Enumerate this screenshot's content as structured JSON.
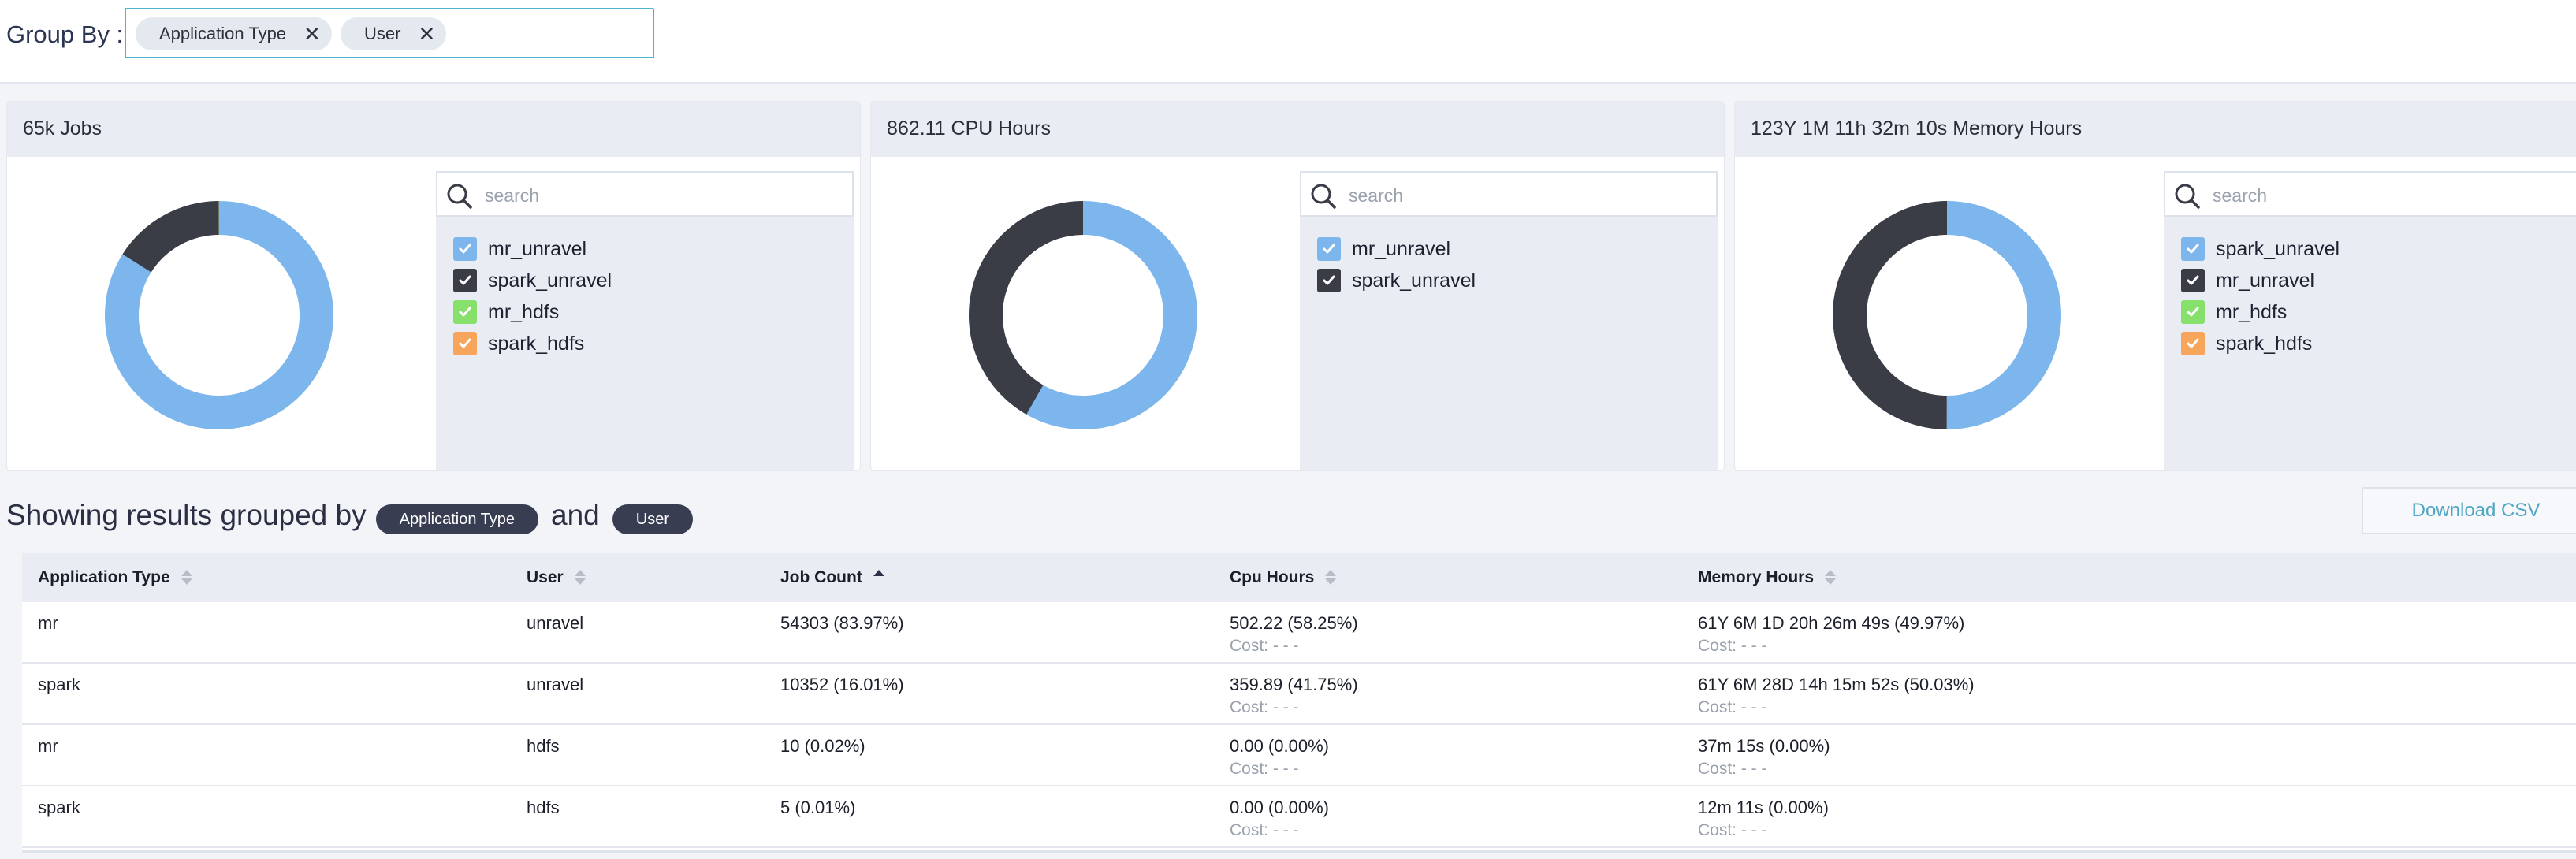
{
  "group_by": {
    "label": "Group By :",
    "chips": [
      "Application Type",
      "User"
    ],
    "remove_symbol": "✕"
  },
  "colors": {
    "accent": "#4fb3cf",
    "light_blue": "#7db6ec",
    "dark": "#3a3d46",
    "green": "#86e06b",
    "orange": "#f6a55b"
  },
  "cards": [
    {
      "title": "65k Jobs",
      "search_placeholder": "search",
      "legend": [
        {
          "label": "mr_unravel",
          "color": "#7db6ec"
        },
        {
          "label": "spark_unravel",
          "color": "#3a3d46"
        },
        {
          "label": "mr_hdfs",
          "color": "#86e06b"
        },
        {
          "label": "spark_hdfs",
          "color": "#f6a55b"
        }
      ]
    },
    {
      "title": "862.11 CPU Hours",
      "search_placeholder": "search",
      "legend": [
        {
          "label": "mr_unravel",
          "color": "#7db6ec"
        },
        {
          "label": "spark_unravel",
          "color": "#3a3d46"
        }
      ]
    },
    {
      "title": "123Y 1M 11h 32m 10s Memory Hours",
      "search_placeholder": "search",
      "legend": [
        {
          "label": "spark_unravel",
          "color": "#7db6ec"
        },
        {
          "label": "mr_unravel",
          "color": "#3a3d46"
        },
        {
          "label": "mr_hdfs",
          "color": "#86e06b"
        },
        {
          "label": "spark_hdfs",
          "color": "#f6a55b"
        }
      ]
    }
  ],
  "chart_data": [
    {
      "type": "pie",
      "title": "65k Jobs",
      "series": [
        {
          "name": "mr_unravel",
          "value": 83.97
        },
        {
          "name": "spark_unravel",
          "value": 16.01
        },
        {
          "name": "mr_hdfs",
          "value": 0.02
        },
        {
          "name": "spark_hdfs",
          "value": 0.01
        }
      ]
    },
    {
      "type": "pie",
      "title": "862.11 CPU Hours",
      "series": [
        {
          "name": "mr_unravel",
          "value": 58.25
        },
        {
          "name": "spark_unravel",
          "value": 41.75
        }
      ]
    },
    {
      "type": "pie",
      "title": "123Y 1M 11h 32m 10s Memory Hours",
      "series": [
        {
          "name": "spark_unravel",
          "value": 50.03
        },
        {
          "name": "mr_unravel",
          "value": 49.97
        },
        {
          "name": "mr_hdfs",
          "value": 0.0
        },
        {
          "name": "spark_hdfs",
          "value": 0.0
        }
      ]
    }
  ],
  "results": {
    "prefix": "Showing results grouped by",
    "first_group": "Application Type",
    "joiner": "and",
    "second_group": "User",
    "download_label": "Download CSV"
  },
  "table": {
    "columns": [
      "Application Type",
      "User",
      "Job Count",
      "Cpu Hours",
      "Memory Hours"
    ],
    "rows": [
      {
        "app": "mr",
        "user": "unravel",
        "jobs": "54303 (83.97%)",
        "cpu": "502.22 (58.25%)",
        "cpu_cost": "Cost: - - -",
        "mem": "61Y 6M 1D 20h 26m 49s (49.97%)",
        "mem_cost": "Cost: - - -"
      },
      {
        "app": "spark",
        "user": "unravel",
        "jobs": "10352 (16.01%)",
        "cpu": "359.89 (41.75%)",
        "cpu_cost": "Cost: - - -",
        "mem": "61Y 6M 28D 14h 15m 52s (50.03%)",
        "mem_cost": "Cost: - - -"
      },
      {
        "app": "mr",
        "user": "hdfs",
        "jobs": "10 (0.02%)",
        "cpu": "0.00 (0.00%)",
        "cpu_cost": "Cost: - - -",
        "mem": "37m 15s (0.00%)",
        "mem_cost": "Cost: - - -"
      },
      {
        "app": "spark",
        "user": "hdfs",
        "jobs": "5 (0.01%)",
        "cpu": "0.00 (0.00%)",
        "cpu_cost": "Cost: - - -",
        "mem": "12m 11s (0.00%)",
        "mem_cost": "Cost: - - -"
      }
    ]
  }
}
